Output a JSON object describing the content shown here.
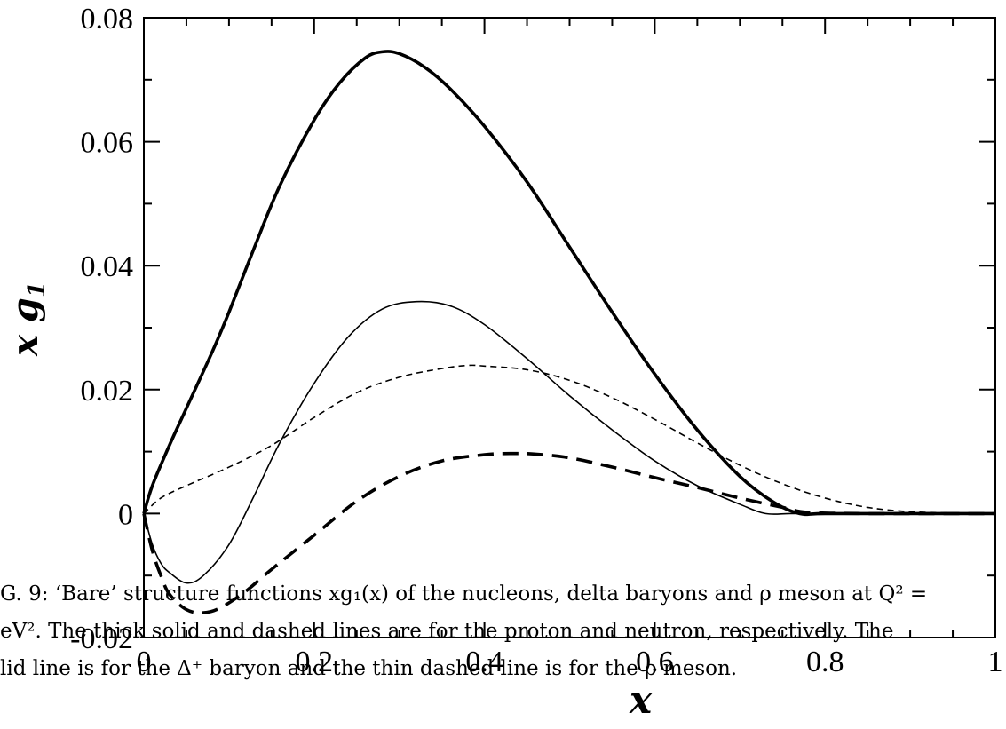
{
  "chart_data": {
    "type": "line",
    "xlabel": "x",
    "ylabel_main": "x g",
    "ylabel_sub": "1",
    "xlim": [
      0,
      1
    ],
    "ylim": [
      -0.02,
      0.08
    ],
    "xticks": [
      {
        "value": 0,
        "label": "0"
      },
      {
        "value": 0.2,
        "label": "0.2"
      },
      {
        "value": 0.4,
        "label": "0.4"
      },
      {
        "value": 0.6,
        "label": "0.6"
      },
      {
        "value": 0.8,
        "label": "0.8"
      },
      {
        "value": 1,
        "label": "1"
      }
    ],
    "yticks": [
      {
        "value": -0.02,
        "label": "-0.02"
      },
      {
        "value": 0,
        "label": "0"
      },
      {
        "value": 0.02,
        "label": "0.02"
      },
      {
        "value": 0.04,
        "label": "0.04"
      },
      {
        "value": 0.06,
        "label": "0.06"
      },
      {
        "value": 0.08,
        "label": "0.08"
      }
    ],
    "series": [
      {
        "id": "proton",
        "style": "thick-solid",
        "x": [
          0,
          0.01,
          0.03,
          0.05,
          0.08,
          0.1,
          0.13,
          0.16,
          0.2,
          0.23,
          0.26,
          0.28,
          0.3,
          0.33,
          0.36,
          0.4,
          0.45,
          0.5,
          0.55,
          0.6,
          0.65,
          0.7,
          0.74,
          0.77,
          0.8,
          0.9,
          1.0
        ],
        "y": [
          0,
          0.0045,
          0.011,
          0.017,
          0.026,
          0.0325,
          0.043,
          0.053,
          0.0635,
          0.0695,
          0.0735,
          0.0745,
          0.0742,
          0.072,
          0.0685,
          0.0625,
          0.0535,
          0.043,
          0.0325,
          0.0225,
          0.0135,
          0.006,
          0.0018,
          0.0,
          0.0,
          0.0,
          0.0
        ]
      },
      {
        "id": "neutron",
        "style": "thick-dashed",
        "x": [
          0,
          0.01,
          0.02,
          0.03,
          0.05,
          0.07,
          0.09,
          0.12,
          0.15,
          0.2,
          0.25,
          0.3,
          0.35,
          0.4,
          0.43,
          0.46,
          0.5,
          0.55,
          0.6,
          0.65,
          0.7,
          0.75,
          0.78,
          0.85,
          1.0
        ],
        "y": [
          0,
          -0.006,
          -0.01,
          -0.013,
          -0.0155,
          -0.016,
          -0.0152,
          -0.0125,
          -0.009,
          -0.0035,
          0.002,
          0.006,
          0.0085,
          0.0095,
          0.0097,
          0.0096,
          0.009,
          0.0075,
          0.0058,
          0.0042,
          0.0025,
          0.001,
          0.0002,
          0.0,
          0.0
        ]
      },
      {
        "id": "delta-plus",
        "style": "thin-solid",
        "x": [
          0,
          0.01,
          0.02,
          0.03,
          0.05,
          0.07,
          0.1,
          0.13,
          0.16,
          0.2,
          0.24,
          0.28,
          0.32,
          0.36,
          0.4,
          0.45,
          0.5,
          0.55,
          0.6,
          0.65,
          0.7,
          0.73,
          0.76,
          0.8,
          1.0
        ],
        "y": [
          0,
          -0.005,
          -0.008,
          -0.0095,
          -0.0112,
          -0.01,
          -0.005,
          0.003,
          0.0115,
          0.021,
          0.0285,
          0.033,
          0.0342,
          0.0335,
          0.0305,
          0.025,
          0.019,
          0.0135,
          0.0085,
          0.0045,
          0.0015,
          0.0,
          0.0,
          0.0,
          0.0
        ]
      },
      {
        "id": "rho-meson",
        "style": "thin-dashed",
        "x": [
          0,
          0.02,
          0.05,
          0.1,
          0.15,
          0.2,
          0.25,
          0.3,
          0.35,
          0.38,
          0.4,
          0.45,
          0.5,
          0.55,
          0.6,
          0.65,
          0.7,
          0.75,
          0.8,
          0.85,
          0.9,
          0.95,
          1.0
        ],
        "y": [
          0,
          0.0025,
          0.0045,
          0.0075,
          0.011,
          0.0155,
          0.0195,
          0.022,
          0.0234,
          0.0239,
          0.0238,
          0.0232,
          0.0215,
          0.0187,
          0.0152,
          0.0114,
          0.0078,
          0.0048,
          0.0025,
          0.001,
          0.0003,
          0.0001,
          0.0
        ]
      }
    ]
  },
  "caption": {
    "line1": "G. 9: ‘Bare’ structure functions xg₁(x) of the nucleons, delta baryons and ρ meson at Q² =",
    "line2": "eV². The thick solid and dashed lines are for the proton and neutron, respectively. The",
    "line3": "lid line is for the Δ⁺ baryon and the thin dashed line is for the ρ meson."
  }
}
